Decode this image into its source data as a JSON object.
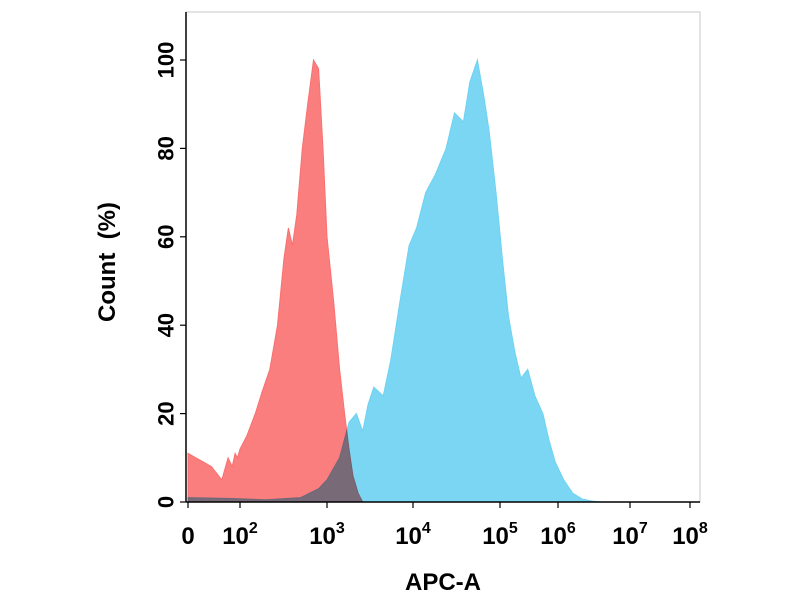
{
  "chart_data": {
    "type": "area",
    "title": "",
    "xlabel": "APC-A",
    "ylabel": "Count  (%)",
    "x_scale": "log",
    "y_ticks": [
      {
        "value": 0,
        "label": "0"
      },
      {
        "value": 20,
        "label": "20"
      },
      {
        "value": 40,
        "label": "40"
      },
      {
        "value": 60,
        "label": "60"
      },
      {
        "value": 80,
        "label": "80"
      },
      {
        "value": 100,
        "label": "100"
      }
    ],
    "x_ticks": [
      {
        "value": 0,
        "base": "0",
        "exp": ""
      },
      {
        "value": 100,
        "base": "10",
        "exp": "2"
      },
      {
        "value": 1000,
        "base": "10",
        "exp": "3"
      },
      {
        "value": 10000,
        "base": "10",
        "exp": "4"
      },
      {
        "value": 100000,
        "base": "10",
        "exp": "5"
      },
      {
        "value": 1000000,
        "base": "10",
        "exp": "6"
      },
      {
        "value": 10000000,
        "base": "10",
        "exp": "7"
      },
      {
        "value": 100000000,
        "base": "10",
        "exp": "8"
      }
    ],
    "ylim": [
      0,
      100
    ],
    "grid": false,
    "legend": "none",
    "series": [
      {
        "color": "#fa7070",
        "opacity": 0.9,
        "points": [
          [
            0,
            11
          ],
          [
            8,
            8
          ],
          [
            20,
            5
          ],
          [
            35,
            10
          ],
          [
            50,
            8
          ],
          [
            65,
            11
          ],
          [
            80,
            10
          ],
          [
            100,
            12
          ],
          [
            120,
            15
          ],
          [
            150,
            20
          ],
          [
            180,
            25
          ],
          [
            220,
            30
          ],
          [
            270,
            40
          ],
          [
            320,
            55
          ],
          [
            360,
            62
          ],
          [
            400,
            58
          ],
          [
            450,
            65
          ],
          [
            520,
            80
          ],
          [
            600,
            90
          ],
          [
            700,
            100
          ],
          [
            800,
            98
          ],
          [
            900,
            80
          ],
          [
            1000,
            60
          ],
          [
            1200,
            45
          ],
          [
            1400,
            30
          ],
          [
            1600,
            20
          ],
          [
            1800,
            12
          ],
          [
            2000,
            6
          ],
          [
            2300,
            2
          ],
          [
            2600,
            0
          ]
        ]
      },
      {
        "color": "#6dd2f2",
        "opacity": 0.9,
        "points": [
          [
            0,
            1
          ],
          [
            50,
            0.8
          ],
          [
            200,
            0.5
          ],
          [
            500,
            1
          ],
          [
            800,
            3
          ],
          [
            1000,
            5
          ],
          [
            1400,
            10
          ],
          [
            1800,
            18
          ],
          [
            2200,
            20
          ],
          [
            2600,
            16
          ],
          [
            3000,
            22
          ],
          [
            3500,
            26
          ],
          [
            4500,
            24
          ],
          [
            5500,
            32
          ],
          [
            7000,
            45
          ],
          [
            9000,
            58
          ],
          [
            11000,
            62
          ],
          [
            14000,
            70
          ],
          [
            18000,
            74
          ],
          [
            24000,
            80
          ],
          [
            30000,
            88
          ],
          [
            38000,
            86
          ],
          [
            45000,
            95
          ],
          [
            55000,
            100
          ],
          [
            65000,
            92
          ],
          [
            75000,
            84
          ],
          [
            90000,
            70
          ],
          [
            110000,
            55
          ],
          [
            140000,
            42
          ],
          [
            180000,
            34
          ],
          [
            230000,
            28
          ],
          [
            300000,
            30
          ],
          [
            400000,
            24
          ],
          [
            550000,
            20
          ],
          [
            700000,
            14
          ],
          [
            900000,
            9
          ],
          [
            1200000,
            5
          ],
          [
            1600000,
            2
          ],
          [
            2200000,
            0.6
          ],
          [
            3000000,
            0.2
          ],
          [
            4000000,
            0
          ]
        ]
      }
    ]
  }
}
